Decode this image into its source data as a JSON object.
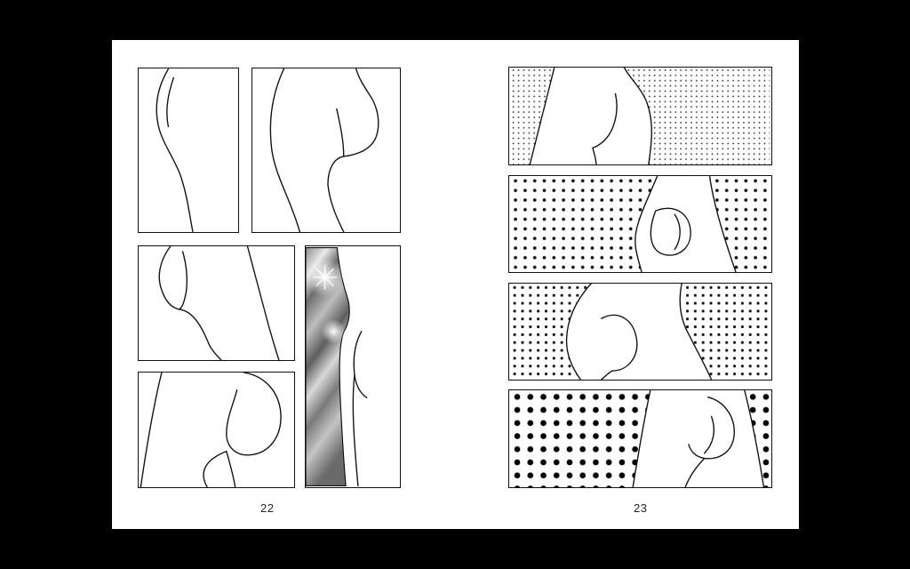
{
  "document": {
    "type": "comic book spread",
    "left_page": {
      "page_number": "22"
    },
    "right_page": {
      "page_number": "23"
    }
  },
  "colors": {
    "background": "#000000",
    "paper": "#ffffff",
    "ink": "#111111"
  }
}
